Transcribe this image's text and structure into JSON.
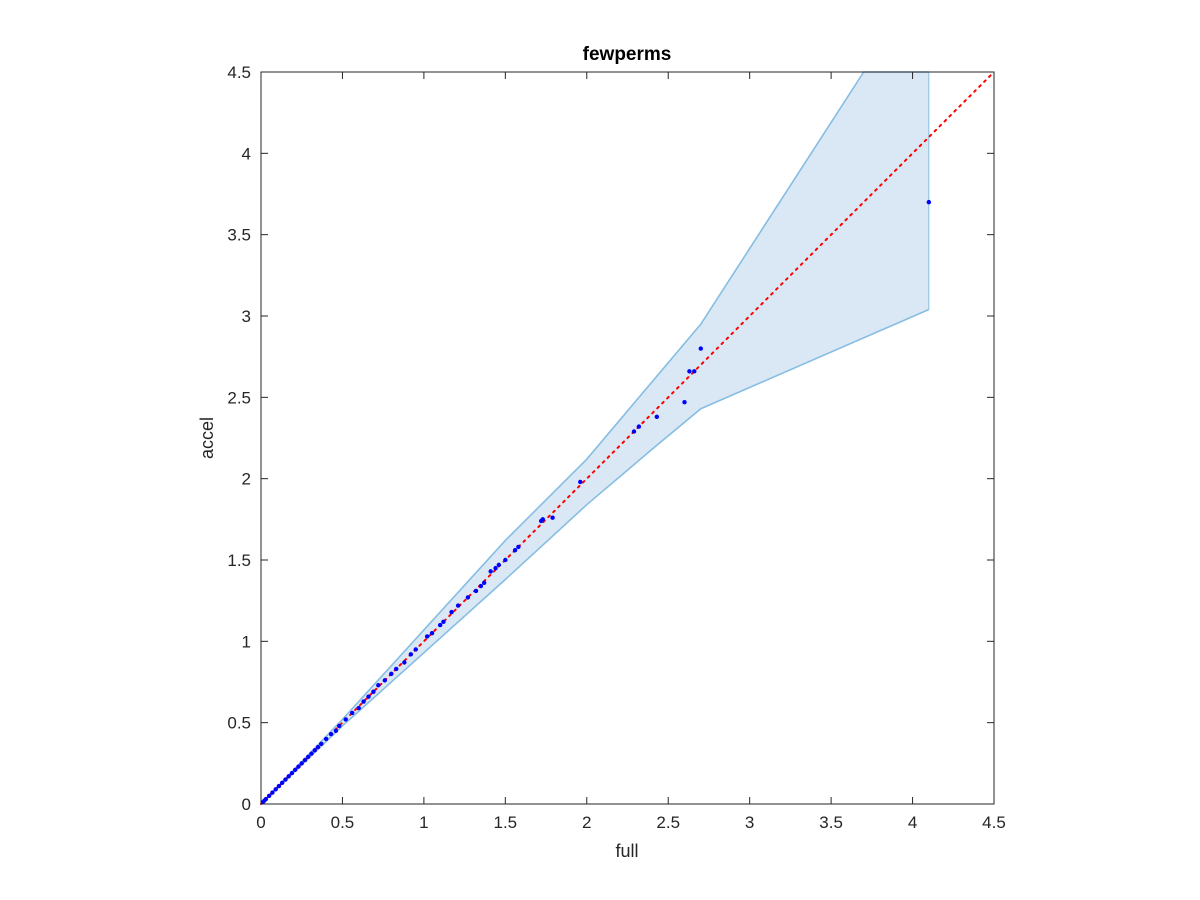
{
  "chart_data": {
    "type": "scatter",
    "title": "fewperms",
    "xlabel": "full",
    "ylabel": "accel",
    "xlim": [
      0,
      4.5
    ],
    "ylim": [
      0,
      4.5
    ],
    "xticks": [
      "0",
      "0.5",
      "1",
      "1.5",
      "2",
      "2.5",
      "3",
      "3.5",
      "4",
      "4.5"
    ],
    "yticks": [
      "0",
      "0.5",
      "1",
      "1.5",
      "2",
      "2.5",
      "3",
      "3.5",
      "4",
      "4.5"
    ],
    "grid": false,
    "colors": {
      "band_fill": "#d9e8f4",
      "band_edge": "#86bde3",
      "points": "#0000ff",
      "reference": "#ff0000",
      "axes": "#262626"
    },
    "reference_line": {
      "style": "dotted",
      "x": [
        0,
        4.5
      ],
      "y": [
        0,
        4.5
      ]
    },
    "band": {
      "upper": [
        [
          0,
          0
        ],
        [
          0.5,
          0.52
        ],
        [
          1,
          1.07
        ],
        [
          1.5,
          1.62
        ],
        [
          2,
          2.12
        ],
        [
          2.7,
          2.95
        ],
        [
          3.7,
          4.5
        ],
        [
          4.1,
          4.5
        ]
      ],
      "lower": [
        [
          0,
          0
        ],
        [
          0.5,
          0.48
        ],
        [
          1,
          0.93
        ],
        [
          1.5,
          1.38
        ],
        [
          2,
          1.84
        ],
        [
          2.4,
          2.18
        ],
        [
          2.7,
          2.43
        ],
        [
          4.1,
          3.04
        ]
      ]
    },
    "points": {
      "x": [
        0.01,
        0.02,
        0.03,
        0.05,
        0.07,
        0.09,
        0.11,
        0.13,
        0.15,
        0.17,
        0.19,
        0.21,
        0.23,
        0.25,
        0.27,
        0.29,
        0.31,
        0.33,
        0.35,
        0.37,
        0.4,
        0.43,
        0.46,
        0.48,
        0.52,
        0.56,
        0.6,
        0.63,
        0.66,
        0.69,
        0.72,
        0.76,
        0.8,
        0.83,
        0.88,
        0.92,
        0.95,
        1.02,
        1.05,
        1.1,
        1.12,
        1.17,
        1.21,
        1.27,
        1.32,
        1.35,
        1.37,
        1.41,
        1.44,
        1.46,
        1.5,
        1.56,
        1.58,
        1.72,
        1.73,
        1.79,
        1.96,
        2.29,
        2.32,
        2.43,
        2.6,
        2.63,
        2.66,
        2.7,
        4.1
      ],
      "y": [
        0.01,
        0.02,
        0.03,
        0.05,
        0.07,
        0.09,
        0.11,
        0.13,
        0.15,
        0.17,
        0.19,
        0.21,
        0.23,
        0.25,
        0.27,
        0.29,
        0.31,
        0.33,
        0.35,
        0.37,
        0.4,
        0.43,
        0.45,
        0.48,
        0.52,
        0.56,
        0.59,
        0.63,
        0.66,
        0.69,
        0.73,
        0.76,
        0.8,
        0.83,
        0.87,
        0.92,
        0.95,
        1.03,
        1.05,
        1.1,
        1.12,
        1.18,
        1.22,
        1.27,
        1.31,
        1.34,
        1.36,
        1.43,
        1.45,
        1.47,
        1.5,
        1.56,
        1.58,
        1.74,
        1.75,
        1.76,
        1.98,
        2.29,
        2.32,
        2.38,
        2.47,
        2.66,
        2.66,
        2.8,
        3.7
      ]
    }
  }
}
